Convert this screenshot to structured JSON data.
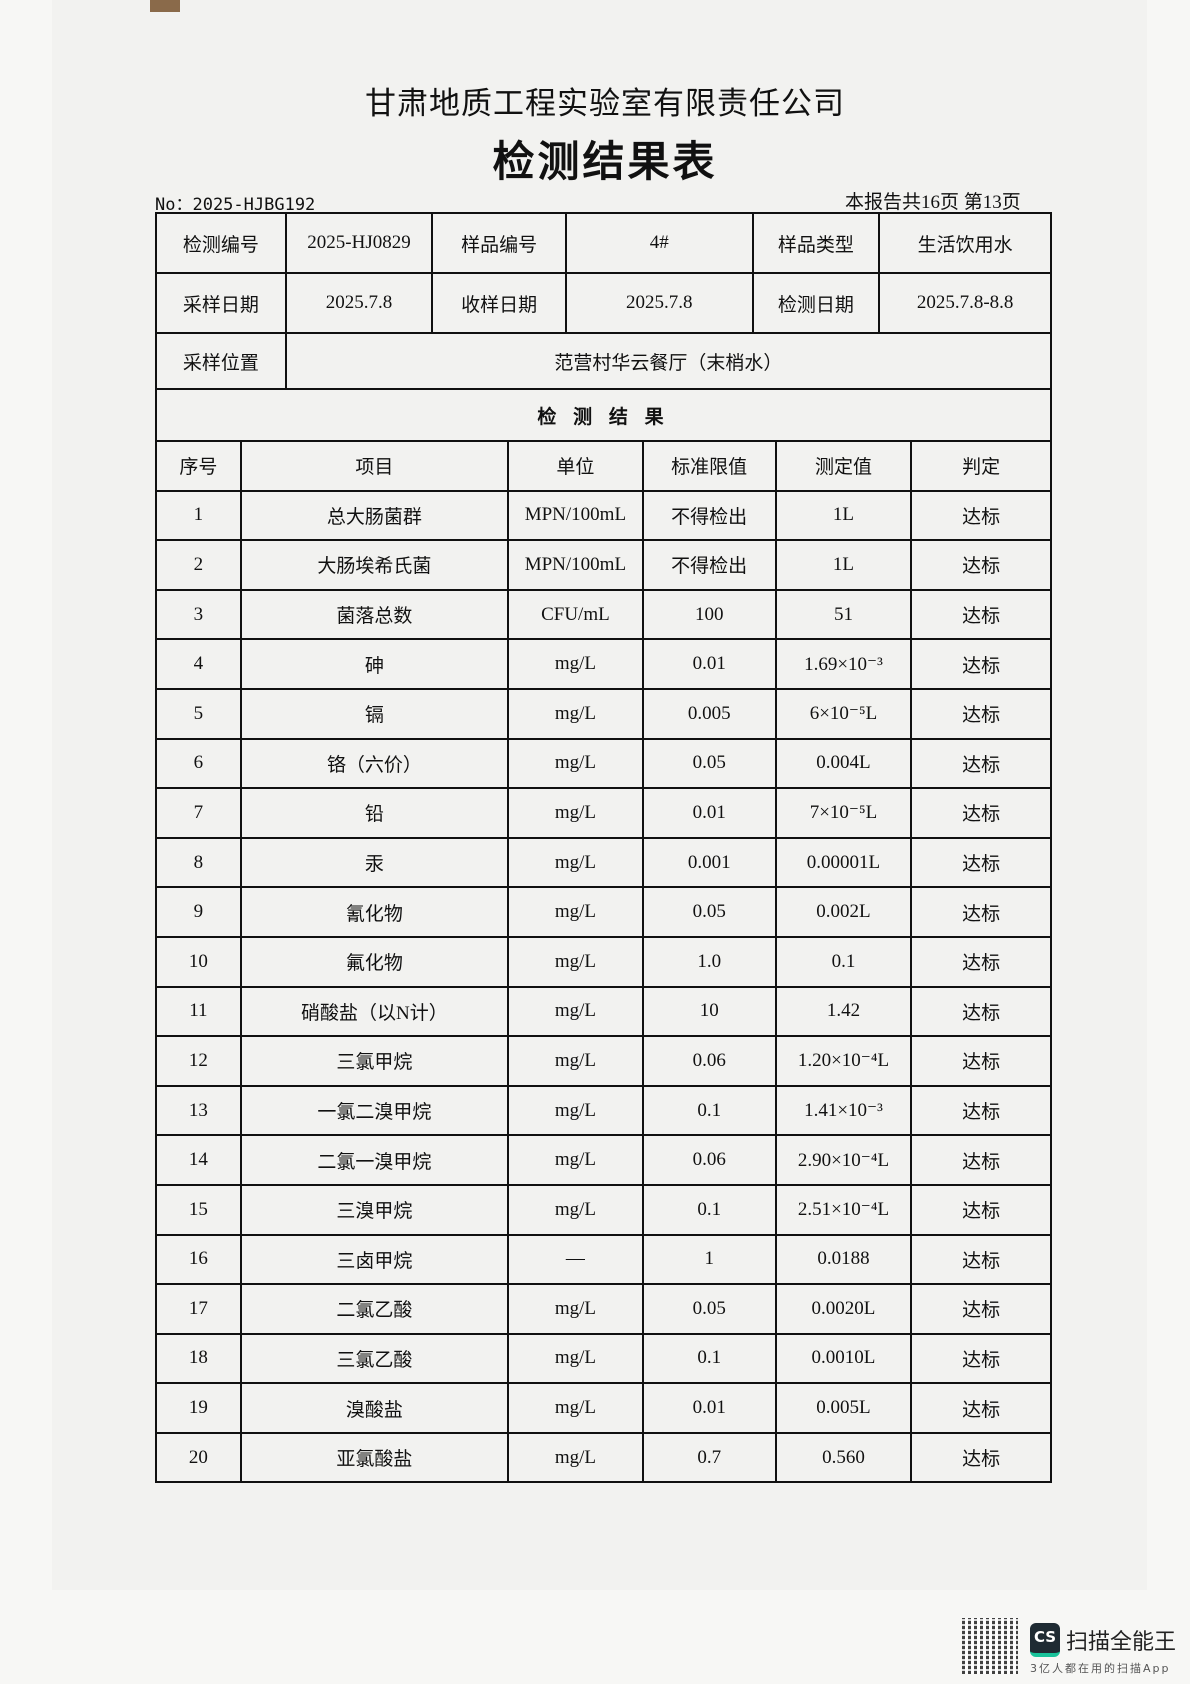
{
  "header": {
    "company": "甘肃地质工程实验室有限责任公司",
    "title": "检测结果表",
    "report_no": "No：2025-HJBG192",
    "page_info": "本报告共16页 第13页"
  },
  "info": {
    "test_no_label": "检测编号",
    "test_no": "2025-HJ0829",
    "sample_no_label": "样品编号",
    "sample_no": "4#",
    "sample_type_label": "样品类型",
    "sample_type": "生活饮用水",
    "sampling_date_label": "采样日期",
    "sampling_date": "2025.7.8",
    "receive_date_label": "收样日期",
    "receive_date": "2025.7.8",
    "test_date_label": "检测日期",
    "test_date": "2025.7.8-8.8",
    "location_label": "采样位置",
    "location": "范营村华云餐厅（末梢水）"
  },
  "results": {
    "section_title": "检 测 结 果",
    "columns": [
      "序号",
      "项目",
      "单位",
      "标准限值",
      "测定值",
      "判定"
    ],
    "rows": [
      [
        "1",
        "总大肠菌群",
        "MPN/100mL",
        "不得检出",
        "1L",
        "达标"
      ],
      [
        "2",
        "大肠埃希氏菌",
        "MPN/100mL",
        "不得检出",
        "1L",
        "达标"
      ],
      [
        "3",
        "菌落总数",
        "CFU/mL",
        "100",
        "51",
        "达标"
      ],
      [
        "4",
        "砷",
        "mg/L",
        "0.01",
        "1.69×10⁻³",
        "达标"
      ],
      [
        "5",
        "镉",
        "mg/L",
        "0.005",
        "6×10⁻⁵L",
        "达标"
      ],
      [
        "6",
        "铬（六价）",
        "mg/L",
        "0.05",
        "0.004L",
        "达标"
      ],
      [
        "7",
        "铅",
        "mg/L",
        "0.01",
        "7×10⁻⁵L",
        "达标"
      ],
      [
        "8",
        "汞",
        "mg/L",
        "0.001",
        "0.00001L",
        "达标"
      ],
      [
        "9",
        "氰化物",
        "mg/L",
        "0.05",
        "0.002L",
        "达标"
      ],
      [
        "10",
        "氟化物",
        "mg/L",
        "1.0",
        "0.1",
        "达标"
      ],
      [
        "11",
        "硝酸盐（以N计）",
        "mg/L",
        "10",
        "1.42",
        "达标"
      ],
      [
        "12",
        "三氯甲烷",
        "mg/L",
        "0.06",
        "1.20×10⁻⁴L",
        "达标"
      ],
      [
        "13",
        "一氯二溴甲烷",
        "mg/L",
        "0.1",
        "1.41×10⁻³",
        "达标"
      ],
      [
        "14",
        "二氯一溴甲烷",
        "mg/L",
        "0.06",
        "2.90×10⁻⁴L",
        "达标"
      ],
      [
        "15",
        "三溴甲烷",
        "mg/L",
        "0.1",
        "2.51×10⁻⁴L",
        "达标"
      ],
      [
        "16",
        "三卤甲烷",
        "—",
        "1",
        "0.0188",
        "达标"
      ],
      [
        "17",
        "二氯乙酸",
        "mg/L",
        "0.05",
        "0.0020L",
        "达标"
      ],
      [
        "18",
        "三氯乙酸",
        "mg/L",
        "0.1",
        "0.0010L",
        "达标"
      ],
      [
        "19",
        "溴酸盐",
        "mg/L",
        "0.01",
        "0.005L",
        "达标"
      ],
      [
        "20",
        "亚氯酸盐",
        "mg/L",
        "0.7",
        "0.560",
        "达标"
      ]
    ]
  },
  "watermark": {
    "logo": "CS",
    "brand": "扫描全能王",
    "slogan": "3亿人都在用的扫描App",
    "accent": "#19c39a"
  }
}
